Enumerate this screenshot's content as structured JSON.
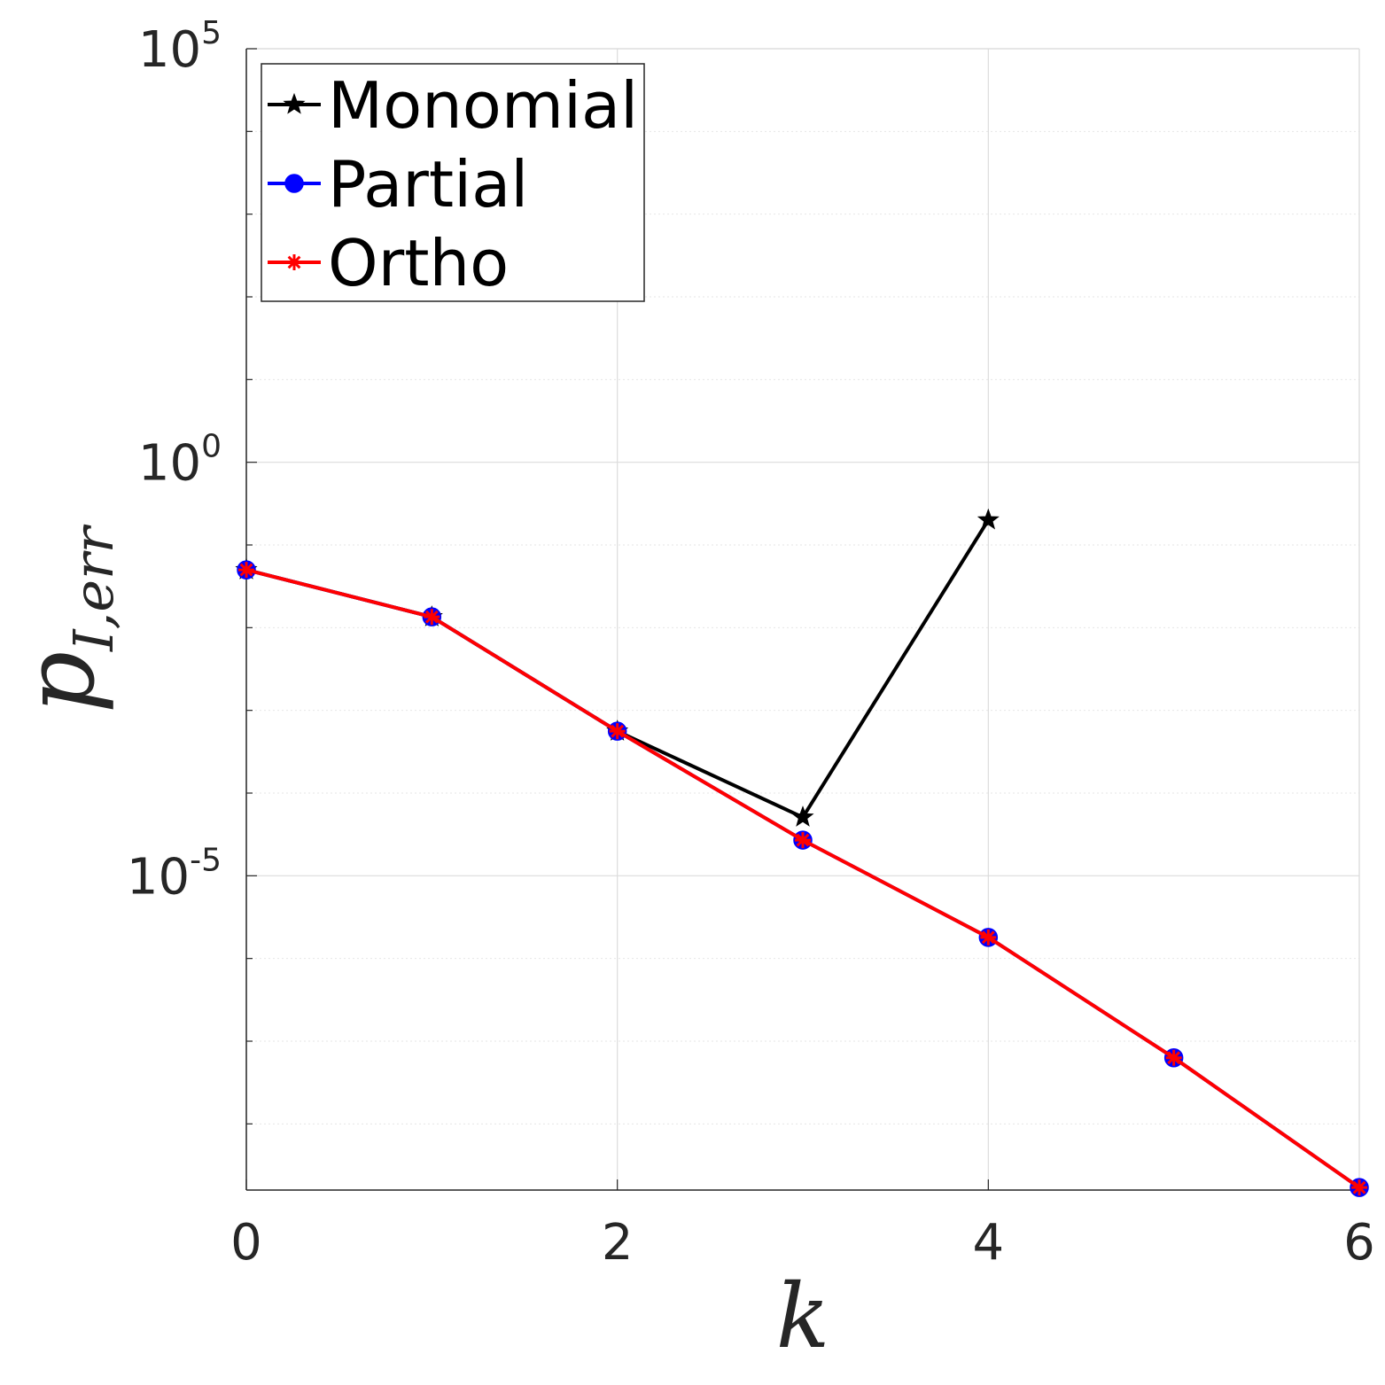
{
  "chart_data": {
    "type": "line",
    "xlabel": "k",
    "ylabel": {
      "base": "p",
      "subscript": "I,err"
    },
    "xlim": [
      0,
      6
    ],
    "ylim_log10": [
      -8.8,
      5
    ],
    "yscale": "log",
    "grid": true,
    "legend_position": "top-left",
    "x_ticks": [
      {
        "value": 0,
        "label": "0"
      },
      {
        "value": 2,
        "label": "2"
      },
      {
        "value": 4,
        "label": "4"
      },
      {
        "value": 6,
        "label": "6"
      }
    ],
    "y_ticks": [
      {
        "exp": 5,
        "base": "10",
        "sup": "5"
      },
      {
        "exp": 0,
        "base": "10",
        "sup": "0"
      },
      {
        "exp": -5,
        "base": "10",
        "sup": "-5"
      }
    ],
    "series": [
      {
        "name": "Monomial",
        "color": "#000000",
        "marker": "star",
        "points": [
          [
            0,
            0.05
          ],
          [
            1,
            0.0135
          ],
          [
            2,
            0.00056
          ],
          [
            3,
            5.1e-05
          ],
          [
            4,
            0.2
          ]
        ]
      },
      {
        "name": "Partial",
        "color": "#0000ff",
        "marker": "circle",
        "points": [
          [
            0,
            0.05
          ],
          [
            1,
            0.0135
          ],
          [
            2,
            0.00056
          ],
          [
            3,
            2.7e-05
          ],
          [
            4,
            1.8e-06
          ],
          [
            5,
            6.3e-08
          ],
          [
            6,
            1.7e-09
          ]
        ]
      },
      {
        "name": "Ortho",
        "color": "#ff0000",
        "marker": "asterisk",
        "points": [
          [
            0,
            0.05
          ],
          [
            1,
            0.0135
          ],
          [
            2,
            0.00056
          ],
          [
            3,
            2.7e-05
          ],
          [
            4,
            1.8e-06
          ],
          [
            5,
            6.3e-08
          ],
          [
            6,
            1.7e-09
          ]
        ]
      }
    ]
  }
}
